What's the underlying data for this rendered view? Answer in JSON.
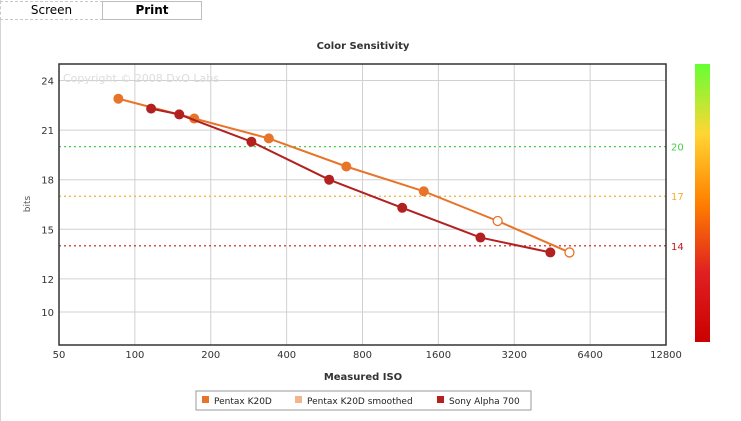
{
  "tabs": [
    {
      "label": "Screen"
    },
    {
      "label": "Print"
    }
  ],
  "colors": {
    "pentax": "#e8742a",
    "pentax_smoothed": "#f2b48a",
    "sony": "#b32020",
    "plot_border": "#333333",
    "grid": "#d0d0d0",
    "ref_good": "#4ccc4c",
    "ref_mid": "#f2b030",
    "ref_bad": "#c01818"
  },
  "chart_data": {
    "type": "line",
    "title": "Color Sensitivity",
    "xlabel": "Measured ISO",
    "ylabel": "bits",
    "x_scale": "log2",
    "xlim": [
      50,
      12800
    ],
    "ylim": [
      8,
      25
    ],
    "x_ticks": [
      50,
      100,
      200,
      400,
      800,
      1600,
      3200,
      6400,
      12800
    ],
    "y_ticks": [
      10,
      12,
      15,
      18,
      21,
      24
    ],
    "grid": true,
    "watermark": "Copyright © 2008 DxO Labs",
    "reference_lines": [
      {
        "y": 20,
        "label": "20",
        "color_key": "ref_good"
      },
      {
        "y": 17,
        "label": "17",
        "color_key": "ref_mid"
      },
      {
        "y": 14,
        "label": "14",
        "color_key": "ref_bad"
      }
    ],
    "series": [
      {
        "name": "Pentax K20D",
        "color_key": "pentax",
        "points": [
          [
            86,
            22.9
          ],
          [
            172,
            21.7
          ],
          [
            340,
            20.5
          ],
          [
            690,
            18.8
          ],
          [
            1400,
            17.3
          ]
        ],
        "open_points": [
          [
            2750,
            15.5
          ],
          [
            5300,
            13.6
          ]
        ]
      },
      {
        "name": "Sony Alpha 700",
        "color_key": "sony",
        "points": [
          [
            116,
            22.3
          ],
          [
            150,
            21.95
          ],
          [
            290,
            20.3
          ],
          [
            590,
            18.0
          ],
          [
            1150,
            16.3
          ],
          [
            2350,
            14.5
          ],
          [
            4450,
            13.6
          ]
        ],
        "open_points": []
      }
    ],
    "legend": {
      "position": "bottom-center",
      "entries": [
        {
          "label": "Pentax K20D",
          "color_key": "pentax"
        },
        {
          "label": "Pentax K20D smoothed",
          "color_key": "pentax_smoothed"
        },
        {
          "label": "Sony Alpha 700",
          "color_key": "sony"
        }
      ]
    },
    "colorbar": {
      "position": "right",
      "colors": [
        "#66ff33",
        "#ffd633",
        "#ff8000",
        "#e02020",
        "#cc0000"
      ]
    }
  }
}
